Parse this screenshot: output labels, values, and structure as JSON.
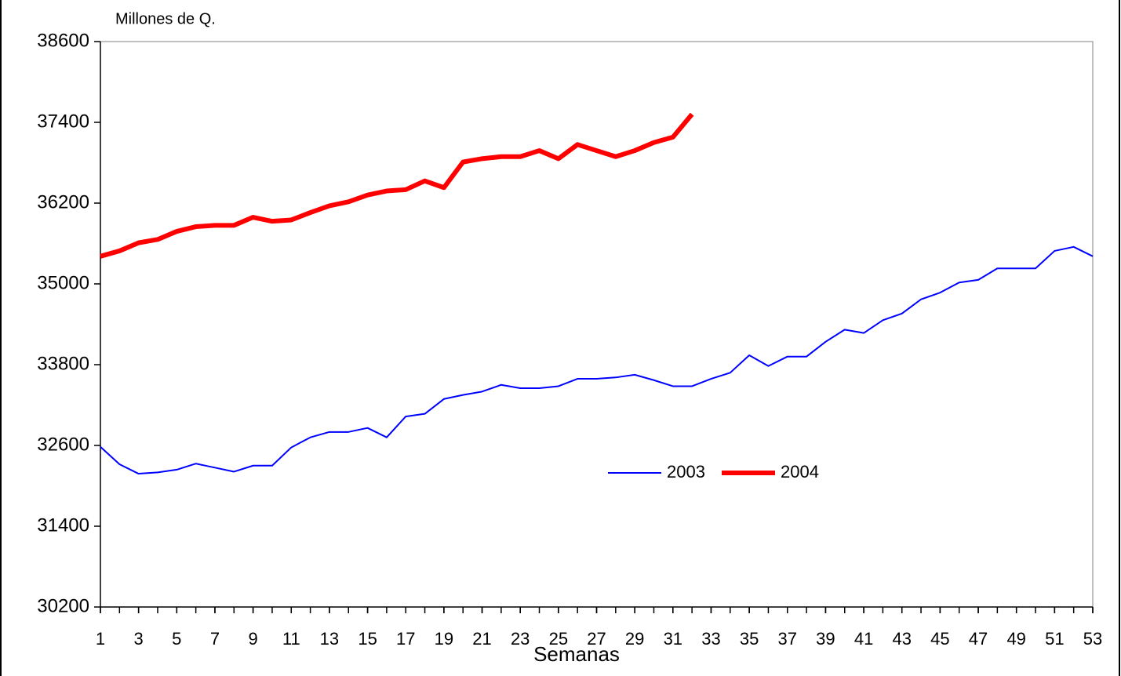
{
  "chart_data": {
    "type": "line",
    "y_label": "Millones de Q.",
    "x_label": "Semanas",
    "x": [
      1,
      2,
      3,
      4,
      5,
      6,
      7,
      8,
      9,
      10,
      11,
      12,
      13,
      14,
      15,
      16,
      17,
      18,
      19,
      20,
      21,
      22,
      23,
      24,
      25,
      26,
      27,
      28,
      29,
      30,
      31,
      32,
      33,
      34,
      35,
      36,
      37,
      38,
      39,
      40,
      41,
      42,
      43,
      44,
      45,
      46,
      47,
      48,
      49,
      50,
      51,
      52,
      53
    ],
    "series": [
      {
        "name": "2003",
        "color": "#0000ff",
        "width": 2,
        "values": [
          32580,
          32320,
          32180,
          32200,
          32240,
          32330,
          32270,
          32210,
          32300,
          32300,
          32570,
          32720,
          32800,
          32800,
          32860,
          32720,
          33030,
          33070,
          33290,
          33350,
          33400,
          33500,
          33450,
          33450,
          33480,
          33590,
          33590,
          33610,
          33650,
          33570,
          33480,
          33480,
          33590,
          33680,
          33940,
          33780,
          33920,
          33920,
          34140,
          34320,
          34270,
          34460,
          34560,
          34770,
          34870,
          35020,
          35060,
          35230,
          35230,
          35230,
          35490,
          35550,
          35410
        ]
      },
      {
        "name": "2004",
        "color": "#ff0000",
        "width": 6,
        "values": [
          35410,
          35490,
          35610,
          35660,
          35780,
          35850,
          35870,
          35870,
          35990,
          35930,
          35950,
          36060,
          36160,
          36220,
          36320,
          36380,
          36400,
          36530,
          36430,
          36810,
          36860,
          36890,
          36890,
          36980,
          36860,
          37070,
          36980,
          36890,
          36980,
          37100,
          37180,
          37520,
          null,
          null,
          null,
          null,
          null,
          null,
          null,
          null,
          null,
          null,
          null,
          null,
          null,
          null,
          null,
          null,
          null,
          null,
          null,
          null,
          null
        ]
      }
    ],
    "xlim": [
      1,
      53
    ],
    "xticks": [
      1,
      3,
      5,
      7,
      9,
      11,
      13,
      15,
      17,
      19,
      21,
      23,
      25,
      27,
      29,
      31,
      33,
      35,
      37,
      39,
      41,
      43,
      45,
      47,
      49,
      51,
      53
    ],
    "ylim": [
      30200,
      38600
    ],
    "yticks": [
      30200,
      31400,
      32600,
      33800,
      35000,
      36200,
      37400,
      38600
    ],
    "grid": false,
    "legend_position": "center"
  }
}
